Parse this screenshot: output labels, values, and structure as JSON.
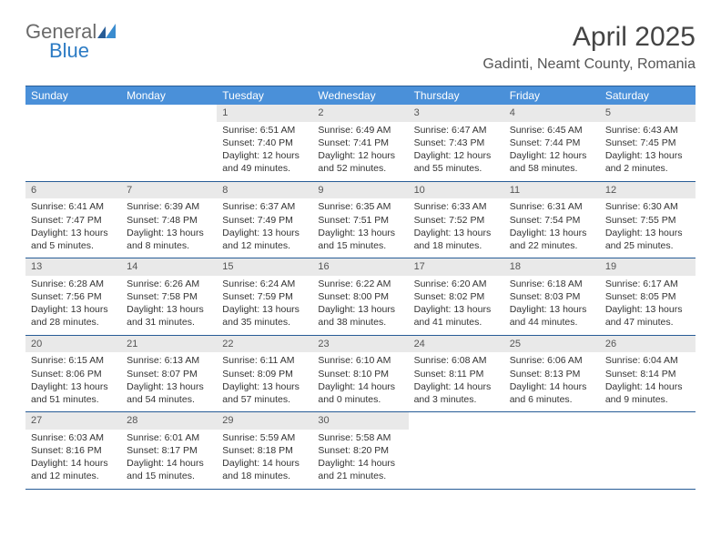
{
  "brand": {
    "general": "General",
    "blue": "Blue"
  },
  "title": "April 2025",
  "location": "Gadinti, Neamt County, Romania",
  "colors": {
    "header_bg": "#4a90d9",
    "header_text": "#ffffff",
    "rule": "#275c96",
    "daynum_bg": "#e9e9e9",
    "body_text": "#333333"
  },
  "weekdays": [
    "Sunday",
    "Monday",
    "Tuesday",
    "Wednesday",
    "Thursday",
    "Friday",
    "Saturday"
  ],
  "cells": [
    {
      "blank": true
    },
    {
      "blank": true
    },
    {
      "day": "1",
      "sunrise": "6:51 AM",
      "sunset": "7:40 PM",
      "daylight": "12 hours and 49 minutes."
    },
    {
      "day": "2",
      "sunrise": "6:49 AM",
      "sunset": "7:41 PM",
      "daylight": "12 hours and 52 minutes."
    },
    {
      "day": "3",
      "sunrise": "6:47 AM",
      "sunset": "7:43 PM",
      "daylight": "12 hours and 55 minutes."
    },
    {
      "day": "4",
      "sunrise": "6:45 AM",
      "sunset": "7:44 PM",
      "daylight": "12 hours and 58 minutes."
    },
    {
      "day": "5",
      "sunrise": "6:43 AM",
      "sunset": "7:45 PM",
      "daylight": "13 hours and 2 minutes."
    },
    {
      "day": "6",
      "sunrise": "6:41 AM",
      "sunset": "7:47 PM",
      "daylight": "13 hours and 5 minutes."
    },
    {
      "day": "7",
      "sunrise": "6:39 AM",
      "sunset": "7:48 PM",
      "daylight": "13 hours and 8 minutes."
    },
    {
      "day": "8",
      "sunrise": "6:37 AM",
      "sunset": "7:49 PM",
      "daylight": "13 hours and 12 minutes."
    },
    {
      "day": "9",
      "sunrise": "6:35 AM",
      "sunset": "7:51 PM",
      "daylight": "13 hours and 15 minutes."
    },
    {
      "day": "10",
      "sunrise": "6:33 AM",
      "sunset": "7:52 PM",
      "daylight": "13 hours and 18 minutes."
    },
    {
      "day": "11",
      "sunrise": "6:31 AM",
      "sunset": "7:54 PM",
      "daylight": "13 hours and 22 minutes."
    },
    {
      "day": "12",
      "sunrise": "6:30 AM",
      "sunset": "7:55 PM",
      "daylight": "13 hours and 25 minutes."
    },
    {
      "day": "13",
      "sunrise": "6:28 AM",
      "sunset": "7:56 PM",
      "daylight": "13 hours and 28 minutes."
    },
    {
      "day": "14",
      "sunrise": "6:26 AM",
      "sunset": "7:58 PM",
      "daylight": "13 hours and 31 minutes."
    },
    {
      "day": "15",
      "sunrise": "6:24 AM",
      "sunset": "7:59 PM",
      "daylight": "13 hours and 35 minutes."
    },
    {
      "day": "16",
      "sunrise": "6:22 AM",
      "sunset": "8:00 PM",
      "daylight": "13 hours and 38 minutes."
    },
    {
      "day": "17",
      "sunrise": "6:20 AM",
      "sunset": "8:02 PM",
      "daylight": "13 hours and 41 minutes."
    },
    {
      "day": "18",
      "sunrise": "6:18 AM",
      "sunset": "8:03 PM",
      "daylight": "13 hours and 44 minutes."
    },
    {
      "day": "19",
      "sunrise": "6:17 AM",
      "sunset": "8:05 PM",
      "daylight": "13 hours and 47 minutes."
    },
    {
      "day": "20",
      "sunrise": "6:15 AM",
      "sunset": "8:06 PM",
      "daylight": "13 hours and 51 minutes."
    },
    {
      "day": "21",
      "sunrise": "6:13 AM",
      "sunset": "8:07 PM",
      "daylight": "13 hours and 54 minutes."
    },
    {
      "day": "22",
      "sunrise": "6:11 AM",
      "sunset": "8:09 PM",
      "daylight": "13 hours and 57 minutes."
    },
    {
      "day": "23",
      "sunrise": "6:10 AM",
      "sunset": "8:10 PM",
      "daylight": "14 hours and 0 minutes."
    },
    {
      "day": "24",
      "sunrise": "6:08 AM",
      "sunset": "8:11 PM",
      "daylight": "14 hours and 3 minutes."
    },
    {
      "day": "25",
      "sunrise": "6:06 AM",
      "sunset": "8:13 PM",
      "daylight": "14 hours and 6 minutes."
    },
    {
      "day": "26",
      "sunrise": "6:04 AM",
      "sunset": "8:14 PM",
      "daylight": "14 hours and 9 minutes."
    },
    {
      "day": "27",
      "sunrise": "6:03 AM",
      "sunset": "8:16 PM",
      "daylight": "14 hours and 12 minutes."
    },
    {
      "day": "28",
      "sunrise": "6:01 AM",
      "sunset": "8:17 PM",
      "daylight": "14 hours and 15 minutes."
    },
    {
      "day": "29",
      "sunrise": "5:59 AM",
      "sunset": "8:18 PM",
      "daylight": "14 hours and 18 minutes."
    },
    {
      "day": "30",
      "sunrise": "5:58 AM",
      "sunset": "8:20 PM",
      "daylight": "14 hours and 21 minutes."
    },
    {
      "blank": true
    },
    {
      "blank": true
    },
    {
      "blank": true
    }
  ],
  "labels": {
    "sunrise": "Sunrise:",
    "sunset": "Sunset:",
    "daylight": "Daylight:"
  }
}
